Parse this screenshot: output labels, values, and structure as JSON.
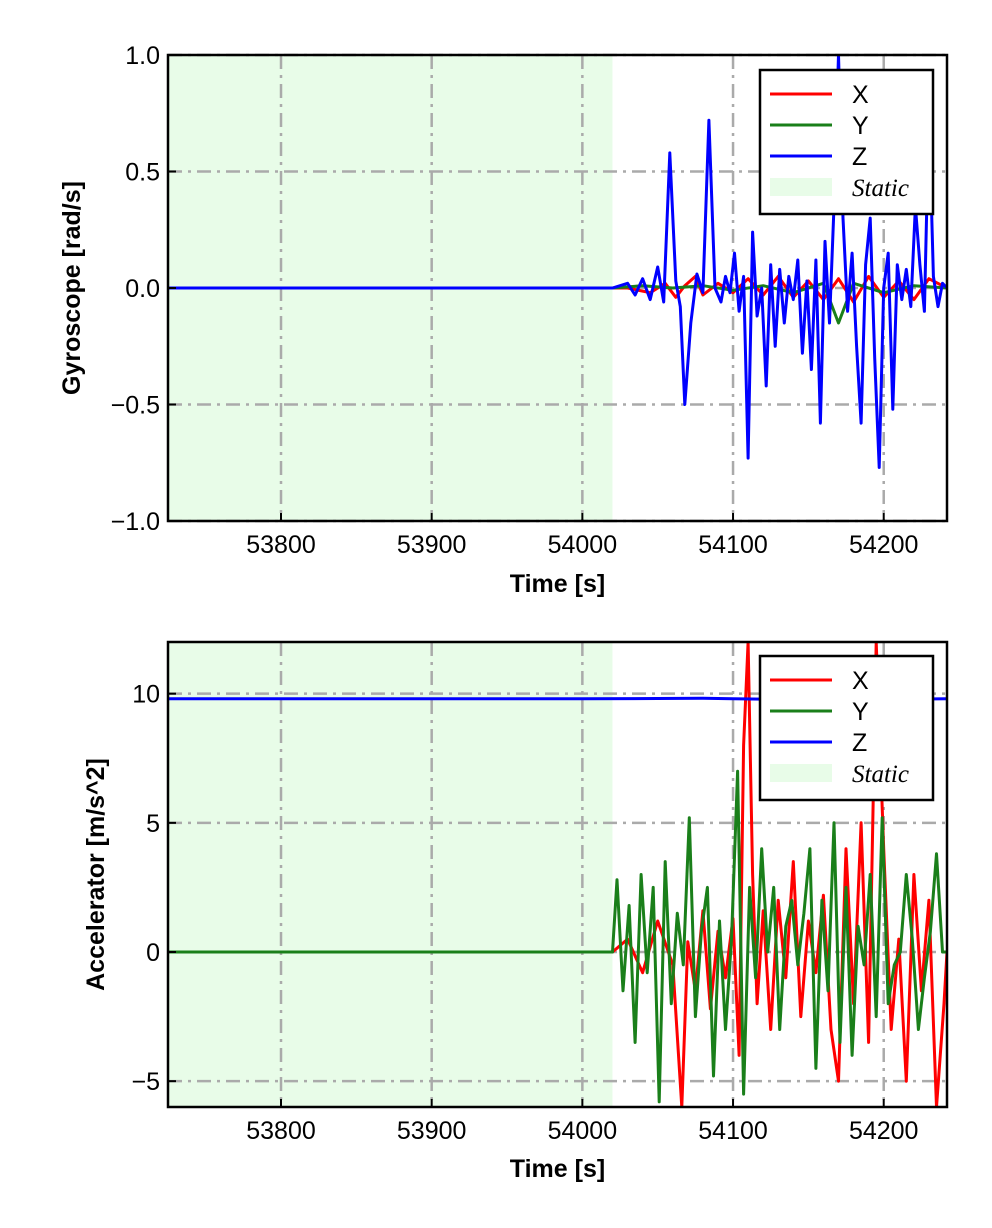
{
  "chart_data": [
    {
      "type": "line",
      "ylabel": "Gyroscope [rad/s]",
      "xlabel": "Time [s]",
      "xlim": [
        53725,
        54242
      ],
      "ylim": [
        -1.0,
        1.0
      ],
      "x_ticks": [
        53800,
        53900,
        54000,
        54100,
        54200
      ],
      "x_tick_labels": [
        "53800",
        "53900",
        "54000",
        "54100",
        "54200"
      ],
      "y_ticks": [
        -1.0,
        -0.5,
        0.0,
        0.5,
        1.0
      ],
      "y_tick_labels": [
        "−1.0",
        "−0.5",
        "0.0",
        "0.5",
        "1.0"
      ],
      "grid": true,
      "legend_position": "top-right",
      "static_region": {
        "label": "Static",
        "x_start": 53725,
        "x_end": 54020,
        "color": "#e8fce8"
      },
      "series": [
        {
          "name": "X",
          "color": "#ff0000",
          "x": [
            53725,
            54020,
            54030,
            54045,
            54055,
            54062,
            54068,
            54075,
            54080,
            54090,
            54100,
            54110,
            54120,
            54130,
            54140,
            54150,
            54160,
            54170,
            54180,
            54190,
            54200,
            54210,
            54220,
            54230,
            54242
          ],
          "y": [
            0.0,
            0.0,
            0.0,
            -0.02,
            0.02,
            -0.04,
            0.01,
            0.05,
            -0.03,
            0.02,
            -0.02,
            0.04,
            -0.03,
            0.05,
            -0.04,
            0.03,
            -0.05,
            0.04,
            -0.06,
            0.05,
            -0.04,
            0.03,
            -0.05,
            0.04,
            0.0
          ]
        },
        {
          "name": "Y",
          "color": "#1a7f1a",
          "x": [
            53725,
            54020,
            54040,
            54060,
            54080,
            54100,
            54120,
            54140,
            54160,
            54170,
            54180,
            54200,
            54220,
            54242
          ],
          "y": [
            0.0,
            0.0,
            0.01,
            0.0,
            0.01,
            -0.01,
            0.01,
            -0.02,
            0.02,
            -0.15,
            0.02,
            -0.02,
            0.01,
            0.0
          ]
        },
        {
          "name": "Z",
          "color": "#0000ff",
          "x": [
            53725,
            54020,
            54030,
            54035,
            54040,
            54045,
            54050,
            54054,
            54058,
            54062,
            54065,
            54068,
            54072,
            54076,
            54080,
            54084,
            54088,
            54092,
            54095,
            54098,
            54101,
            54104,
            54107,
            54110,
            54113,
            54116,
            54119,
            54122,
            54125,
            54128,
            54131,
            54134,
            54137,
            54140,
            54143,
            54146,
            54149,
            54152,
            54155,
            54158,
            54161,
            54164,
            54167,
            54170,
            54173,
            54176,
            54179,
            54182,
            54185,
            54188,
            54191,
            54194,
            54197,
            54200,
            54203,
            54206,
            54209,
            54212,
            54215,
            54218,
            54221,
            54224,
            54227,
            54230,
            54233,
            54236,
            54239,
            54242
          ],
          "y": [
            0.0,
            0.0,
            0.02,
            -0.03,
            0.04,
            -0.05,
            0.09,
            -0.06,
            0.58,
            0.03,
            -0.08,
            -0.5,
            -0.15,
            0.06,
            -0.02,
            0.72,
            0.0,
            -0.06,
            0.05,
            -0.02,
            0.15,
            -0.1,
            0.05,
            -0.73,
            0.24,
            -0.12,
            0.0,
            -0.42,
            0.1,
            -0.25,
            0.08,
            -0.15,
            0.05,
            -0.05,
            0.12,
            -0.28,
            0.03,
            -0.35,
            0.12,
            -0.58,
            0.2,
            -0.15,
            0.35,
            1.0,
            0.3,
            -0.1,
            0.15,
            -0.25,
            -0.58,
            0.1,
            0.3,
            -0.3,
            -0.77,
            0.0,
            0.15,
            -0.52,
            0.1,
            -0.05,
            0.08,
            -0.08,
            0.35,
            0.1,
            -0.1,
            0.75,
            0.05,
            -0.08,
            0.02,
            0.0
          ]
        }
      ]
    },
    {
      "type": "line",
      "ylabel": "Accelerator [m/s^2]",
      "xlabel": "Time [s]",
      "xlim": [
        53725,
        54242
      ],
      "ylim": [
        -6,
        12
      ],
      "x_ticks": [
        53800,
        53900,
        54000,
        54100,
        54200
      ],
      "x_tick_labels": [
        "53800",
        "53900",
        "54000",
        "54100",
        "54200"
      ],
      "y_ticks": [
        -5,
        0,
        5,
        10
      ],
      "y_tick_labels": [
        "−5",
        "0",
        "5",
        "10"
      ],
      "grid": true,
      "legend_position": "top-right",
      "static_region": {
        "label": "Static",
        "x_start": 53725,
        "x_end": 54020,
        "color": "#e8fce8"
      },
      "series": [
        {
          "name": "X",
          "color": "#ff0000",
          "x": [
            53725,
            54020,
            54030,
            54040,
            54050,
            54060,
            54066,
            54070,
            54075,
            54080,
            54085,
            54090,
            54095,
            54100,
            54104,
            54107,
            54110,
            54113,
            54116,
            54120,
            54125,
            54130,
            54135,
            54140,
            54145,
            54150,
            54155,
            54160,
            54165,
            54170,
            54175,
            54180,
            54185,
            54190,
            54195,
            54200,
            54205,
            54210,
            54215,
            54220,
            54225,
            54230,
            54235,
            54240,
            54242
          ],
          "y": [
            0.0,
            0.0,
            0.5,
            -0.8,
            1.2,
            -0.5,
            -6,
            0.4,
            -1.5,
            1.6,
            -2.2,
            0.8,
            -1.0,
            1.3,
            -4,
            8,
            12,
            3,
            -2,
            1.6,
            -3,
            2,
            -1,
            3.5,
            -2.5,
            1.2,
            -0.8,
            2.2,
            -3,
            -5,
            4,
            -2,
            5,
            -3.5,
            12,
            4,
            -3,
            0.5,
            -5,
            3,
            -1.5,
            2,
            -6,
            -2,
            0.0
          ]
        },
        {
          "name": "Y",
          "color": "#1a7f1a",
          "x": [
            53725,
            54020,
            54023,
            54027,
            54031,
            54035,
            54039,
            54043,
            54047,
            54051,
            54055,
            54059,
            54063,
            54067,
            54071,
            54075,
            54079,
            54083,
            54087,
            54091,
            54095,
            54099,
            54103,
            54107,
            54111,
            54115,
            54119,
            54123,
            54127,
            54131,
            54135,
            54139,
            54143,
            54147,
            54151,
            54155,
            54159,
            54163,
            54167,
            54171,
            54175,
            54179,
            54183,
            54187,
            54191,
            54195,
            54199,
            54203,
            54207,
            54211,
            54215,
            54219,
            54223,
            54227,
            54231,
            54235,
            54239,
            54242
          ],
          "y": [
            0.0,
            0.0,
            2.8,
            -1.5,
            1.8,
            -3.5,
            3.0,
            -0.8,
            2.5,
            -5.8,
            3.5,
            -2.0,
            1.5,
            -0.5,
            5.2,
            -2.5,
            0.8,
            2.5,
            -4.8,
            1.2,
            -3.0,
            0.5,
            7.0,
            -5.5,
            2.5,
            -1.0,
            4.0,
            0.0,
            2.5,
            -3.0,
            1.0,
            2.0,
            -0.5,
            1.5,
            4.0,
            -4.5,
            2.0,
            -1.5,
            5.0,
            -3.5,
            2.5,
            -4.0,
            1.0,
            -0.5,
            3.0,
            -2.5,
            5.2,
            -2.0,
            -0.5,
            0.0,
            3.0,
            0.5,
            -3.0,
            -1.0,
            0.8,
            3.8,
            0.0,
            0.0
          ]
        },
        {
          "name": "Z",
          "color": "#0000ff",
          "x": [
            53725,
            53800,
            53900,
            54000,
            54080,
            54100,
            54140,
            54160,
            54180,
            54200,
            54242
          ],
          "y": [
            9.8,
            9.8,
            9.8,
            9.8,
            9.82,
            9.8,
            9.78,
            9.82,
            9.8,
            9.78,
            9.8
          ]
        }
      ]
    }
  ]
}
